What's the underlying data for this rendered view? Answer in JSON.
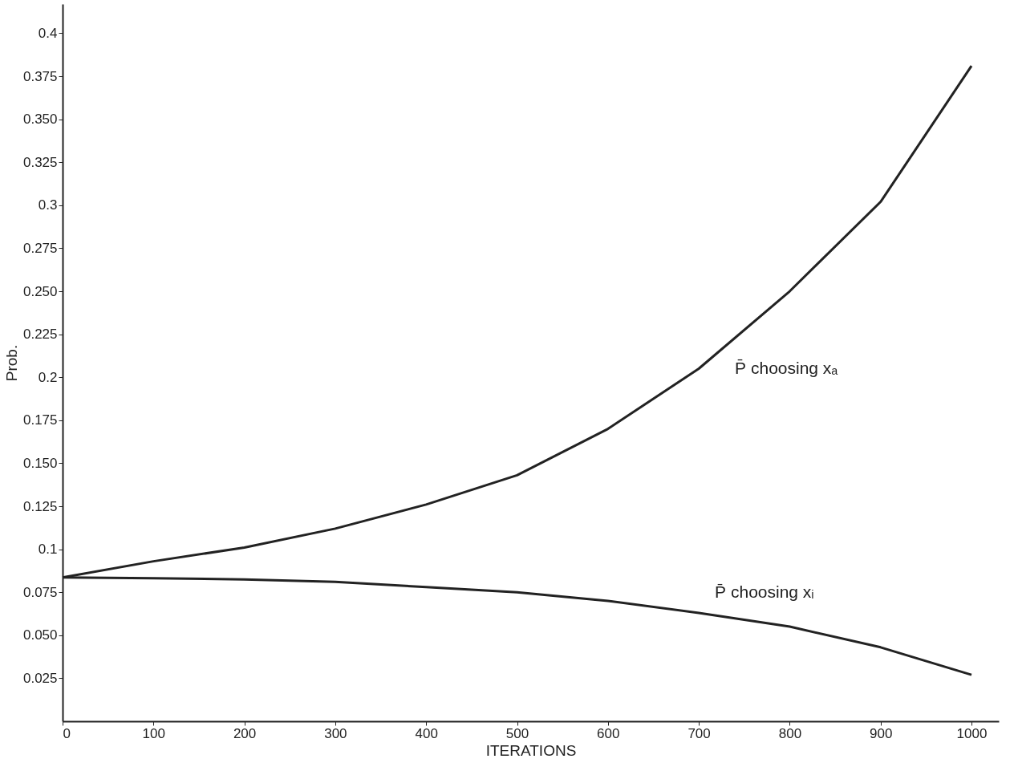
{
  "chart_data": {
    "type": "line",
    "xlabel": "ITERATIONS",
    "ylabel": "Prob.",
    "xlim": [
      0,
      1030
    ],
    "ylim": [
      0,
      0.417
    ],
    "xticks": [
      0,
      100,
      200,
      300,
      400,
      500,
      600,
      700,
      800,
      900,
      1000
    ],
    "yticks": [
      {
        "value": 0.025,
        "label": "0.025"
      },
      {
        "value": 0.05,
        "label": "0.050"
      },
      {
        "value": 0.075,
        "label": "0.075"
      },
      0.1,
      {
        "value": 0.125,
        "label": "0.125"
      },
      {
        "value": 0.15,
        "label": "0.150"
      },
      {
        "value": 0.175,
        "label": "0.175"
      },
      0.2,
      {
        "value": 0.225,
        "label": "0.225"
      },
      {
        "value": 0.25,
        "label": "0.250"
      },
      {
        "value": 0.275,
        "label": "0.275"
      },
      0.3,
      {
        "value": 0.325,
        "label": "0.325"
      },
      {
        "value": 0.35,
        "label": "0.350"
      },
      {
        "value": 0.375,
        "label": "0.375"
      },
      0.4
    ],
    "grid": false,
    "legend": false,
    "marker": "none",
    "line_style": "solid",
    "x": [
      0,
      100,
      200,
      300,
      400,
      500,
      600,
      700,
      800,
      900,
      1000
    ],
    "series": [
      {
        "name": "P̄ choosing xₐ",
        "color": "#222222",
        "values": [
          0.0836,
          0.093,
          0.101,
          0.112,
          0.126,
          0.143,
          0.17,
          0.205,
          0.25,
          0.302,
          0.381
        ]
      },
      {
        "name": "P̄ choosing xᵢ",
        "color": "#222222",
        "values": [
          0.0836,
          0.0832,
          0.0825,
          0.081,
          0.078,
          0.075,
          0.07,
          0.063,
          0.055,
          0.043,
          0.027
        ]
      }
    ]
  }
}
